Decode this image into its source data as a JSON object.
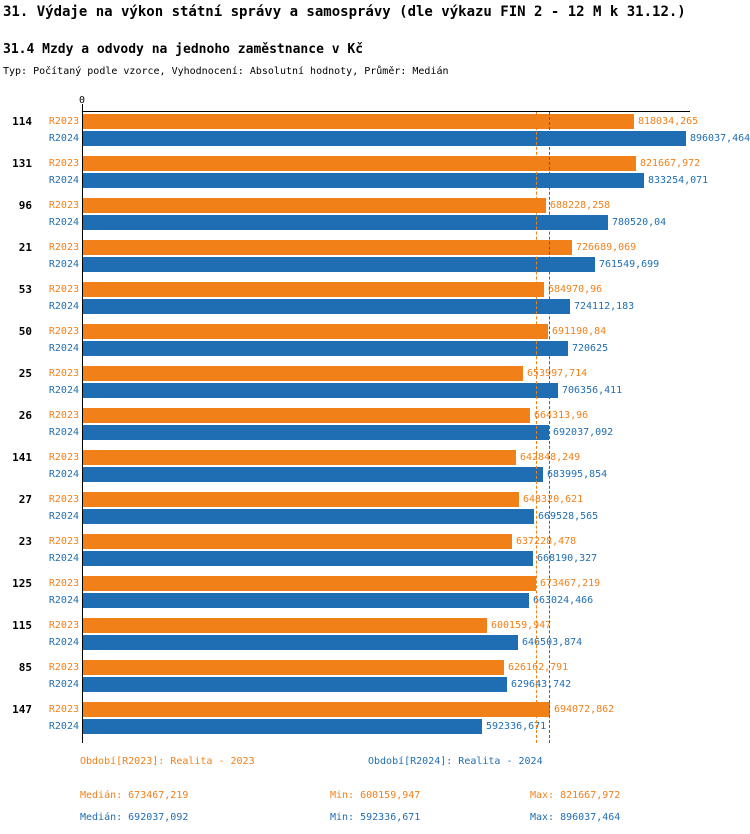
{
  "header": {
    "title": "31. Výdaje na výkon státní správy a samosprávy (dle výkazu FIN 2 - 12 M k 31.12.)",
    "subtitle": "31.4 Mzdy a odvody na jednoho zaměstnance v Kč",
    "meta": "Typ: Počítaný podle vzorce, Vyhodnocení: Absolutní hodnoty, Průměr: Medián"
  },
  "colors": {
    "r2023_orange": "#F28019",
    "r2024_blue": "#1F6EB4",
    "axis": "#000000"
  },
  "chart_data": {
    "type": "bar",
    "orientation": "horizontal",
    "grid": false,
    "xlim": [
      0,
      896037.464
    ],
    "axis_origin_label": "0",
    "xlabel": "",
    "ylabel": "",
    "categories": [
      "114",
      "131",
      "96",
      "21",
      "53",
      "50",
      "25",
      "26",
      "141",
      "27",
      "23",
      "125",
      "115",
      "85",
      "147"
    ],
    "series": [
      {
        "name": "R2023",
        "legend": "Realita - 2023",
        "color": "#F28019",
        "median": 673467.219,
        "values": [
          818034.265,
          821667.972,
          688228.258,
          726689.069,
          684970.96,
          691190.84,
          653997.714,
          664313.96,
          642848.249,
          648320.621,
          637228.478,
          673467.219,
          600159.947,
          626162.791,
          694072.862
        ],
        "value_labels": [
          "818034,265",
          "821667,972",
          "688228,258",
          "726689,069",
          "684970,96",
          "691190,84",
          "653997,714",
          "664313,96",
          "642848,249",
          "648320,621",
          "637228,478",
          "673467,219",
          "600159,947",
          "626162,791",
          "694072,862"
        ]
      },
      {
        "name": "R2024",
        "legend": "Realita - 2024",
        "color": "#1F6EB4",
        "median": 692037.092,
        "values": [
          896037.464,
          833254.071,
          780520.04,
          761549.699,
          724112.183,
          720625,
          706356.411,
          692037.092,
          683995.854,
          669528.565,
          668190.327,
          663024.466,
          646503.874,
          629643.742,
          592336.671
        ],
        "value_labels": [
          "896037,464",
          "833254,071",
          "780520,04",
          "761549,699",
          "724112,183",
          "720625",
          "706356,411",
          "692037,092",
          "683995,854",
          "669528,565",
          "668190,327",
          "663024,466",
          "646503,874",
          "629643,742",
          "592336,671"
        ]
      }
    ]
  },
  "legend": {
    "period_2023": "Období[R2023]: Realita - 2023",
    "period_2024": "Období[R2024]: Realita - 2024",
    "stats_2023": {
      "median": "Medián: 673467,219",
      "min": "Min: 600159,947",
      "max": "Max: 821667,972"
    },
    "stats_2024": {
      "median": "Medián: 692037,092",
      "min": "Min: 592336,671",
      "max": "Max: 896037,464"
    }
  }
}
